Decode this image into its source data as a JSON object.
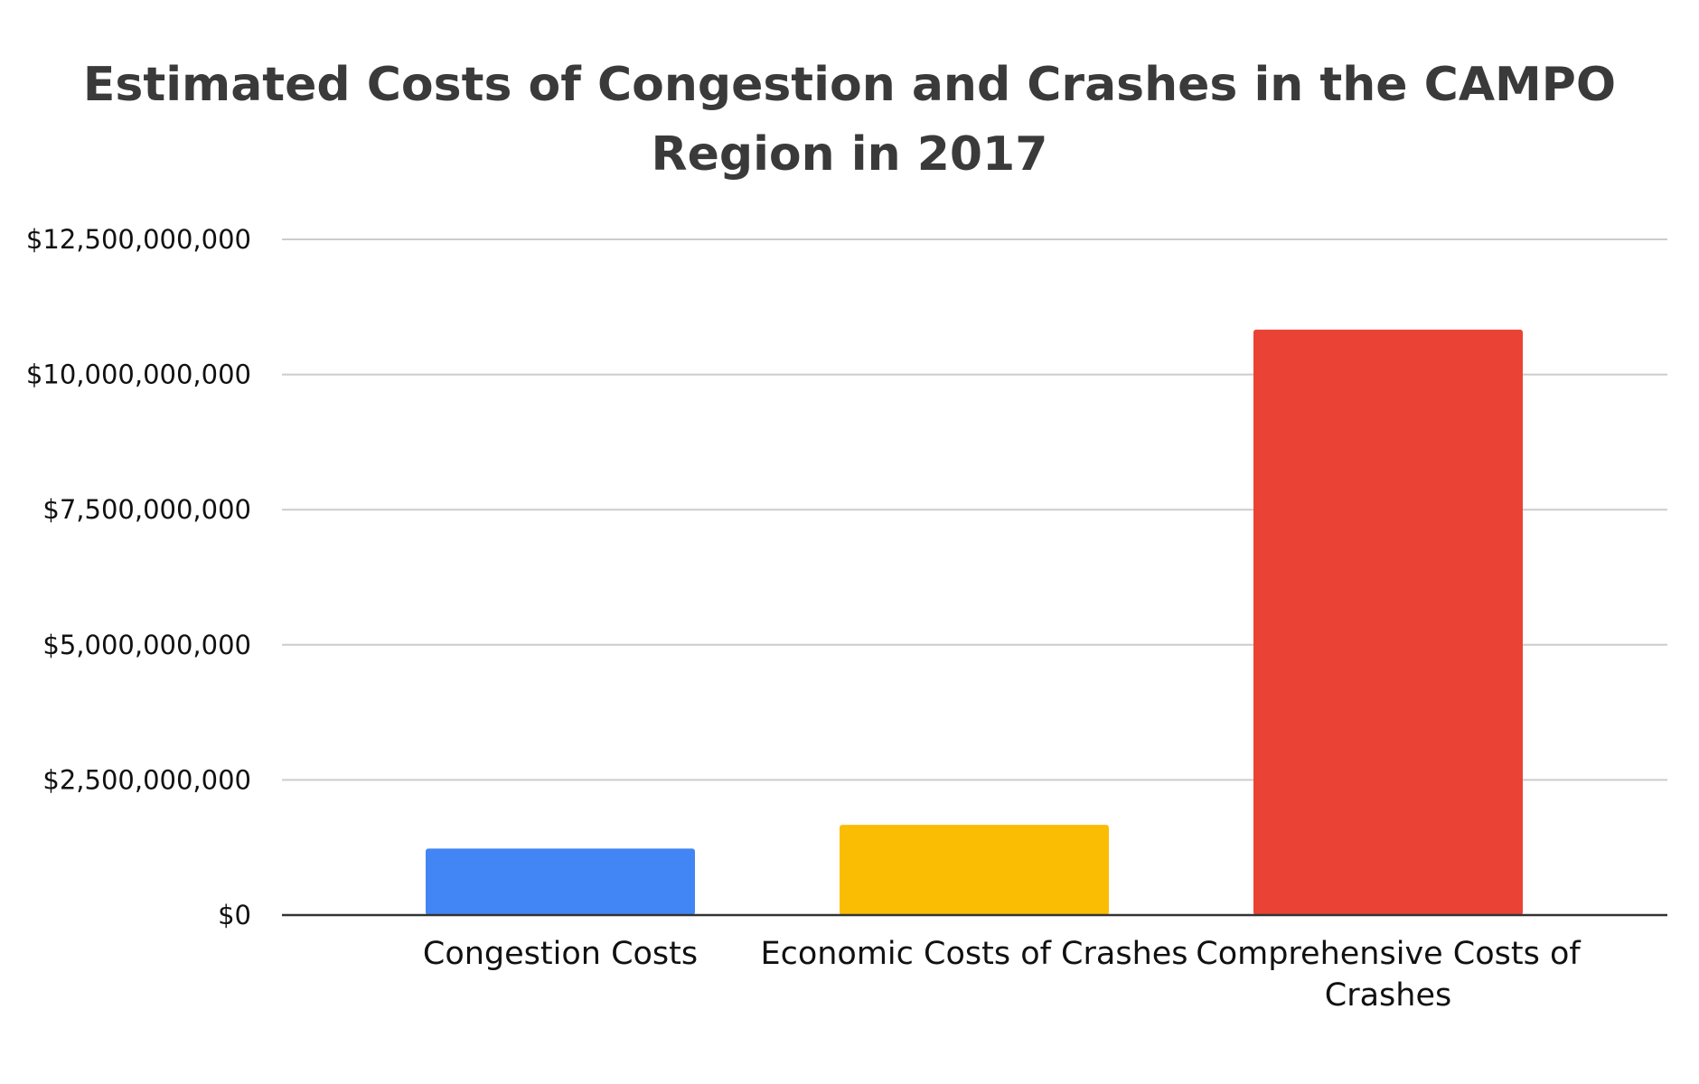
{
  "chart_data": {
    "type": "bar",
    "title_lines": [
      "Estimated Costs of Congestion and Crashes in the CAMPO",
      "Region in 2017"
    ],
    "categories": [
      [
        "Congestion Costs"
      ],
      [
        "Economic Costs of Crashes"
      ],
      [
        "Comprehensive Costs of",
        "Crashes"
      ]
    ],
    "values": [
      1230000000,
      1670000000,
      10830000000
    ],
    "bar_colors": [
      "#4285f4",
      "#fbbc04",
      "#ea4335"
    ],
    "ylim": [
      0,
      12500000000
    ],
    "y_ticks": [
      0,
      2500000000,
      5000000000,
      7500000000,
      10000000000,
      12500000000
    ],
    "y_tick_labels": [
      "$0",
      "$2,500,000,000",
      "$5,000,000,000",
      "$7,500,000,000",
      "$10,000,000,000",
      "$12,500,000,000"
    ],
    "grid": true,
    "legend": "none"
  }
}
